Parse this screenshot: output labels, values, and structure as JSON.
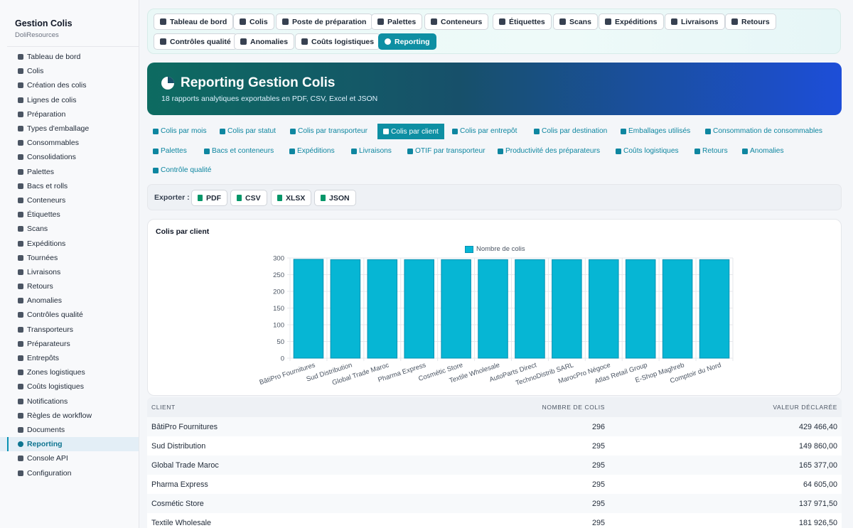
{
  "brand": {
    "title": "Gestion Colis",
    "subtitle": "DoliResources"
  },
  "sidebar": {
    "items": [
      {
        "label": "Tableau de bord",
        "icon": "dashboard-icon"
      },
      {
        "label": "Colis",
        "icon": "box-icon"
      },
      {
        "label": "Création des colis",
        "icon": "plus-square-icon"
      },
      {
        "label": "Lignes de colis",
        "icon": "list-icon"
      },
      {
        "label": "Préparation",
        "icon": "dolly-icon"
      },
      {
        "label": "Types d'emballage",
        "icon": "boxes-icon"
      },
      {
        "label": "Consommables",
        "icon": "tape-icon"
      },
      {
        "label": "Consolidations",
        "icon": "object-group-icon"
      },
      {
        "label": "Palettes",
        "icon": "pallet-icon"
      },
      {
        "label": "Bacs et rolls",
        "icon": "cubes-icon"
      },
      {
        "label": "Conteneurs",
        "icon": "container-icon"
      },
      {
        "label": "Étiquettes",
        "icon": "tags-icon"
      },
      {
        "label": "Scans",
        "icon": "barcode-icon"
      },
      {
        "label": "Expéditions",
        "icon": "truck-icon"
      },
      {
        "label": "Tournées",
        "icon": "route-icon"
      },
      {
        "label": "Livraisons",
        "icon": "truck-loading-icon"
      },
      {
        "label": "Retours",
        "icon": "undo-icon"
      },
      {
        "label": "Anomalies",
        "icon": "warning-icon"
      },
      {
        "label": "Contrôles qualité",
        "icon": "clipboard-check-icon"
      },
      {
        "label": "Transporteurs",
        "icon": "shipping-truck-icon"
      },
      {
        "label": "Préparateurs",
        "icon": "user-cog-icon"
      },
      {
        "label": "Entrepôts",
        "icon": "warehouse-icon"
      },
      {
        "label": "Zones logistiques",
        "icon": "grid-icon"
      },
      {
        "label": "Coûts logistiques",
        "icon": "coins-icon"
      },
      {
        "label": "Notifications",
        "icon": "bell-icon"
      },
      {
        "label": "Règles de workflow",
        "icon": "cogs-icon"
      },
      {
        "label": "Documents",
        "icon": "paperclip-icon"
      },
      {
        "label": "Reporting",
        "icon": "chart-pie-icon",
        "active": true
      },
      {
        "label": "Console API",
        "icon": "plug-icon"
      },
      {
        "label": "Configuration",
        "icon": "gear-icon"
      }
    ]
  },
  "tabs": [
    {
      "label": "Tableau de bord",
      "icon": "dashboard-icon"
    },
    {
      "label": "Colis",
      "icon": "box-icon"
    },
    {
      "label": "Poste de préparation",
      "icon": "dolly-icon"
    },
    {
      "label": "Palettes",
      "icon": "pallet-icon"
    },
    {
      "label": "Conteneurs",
      "icon": "container-icon"
    },
    {
      "label": "Étiquettes",
      "icon": "tags-icon"
    },
    {
      "label": "Scans",
      "icon": "barcode-icon"
    },
    {
      "label": "Expéditions",
      "icon": "truck-icon"
    },
    {
      "label": "Livraisons",
      "icon": "truck-loading-icon"
    },
    {
      "label": "Retours",
      "icon": "undo-icon"
    },
    {
      "label": "Contrôles qualité",
      "icon": "clipboard-check-icon"
    },
    {
      "label": "Anomalies",
      "icon": "warning-icon"
    },
    {
      "label": "Coûts logistiques",
      "icon": "coins-icon"
    },
    {
      "label": "Reporting",
      "icon": "chart-pie-icon",
      "active": true
    }
  ],
  "hero": {
    "title": "Reporting Gestion Colis",
    "subtitle": "18 rapports analytiques exportables en PDF, CSV, Excel et JSON"
  },
  "reports": [
    {
      "label": "Colis par mois",
      "icon": "calendar-icon"
    },
    {
      "label": "Colis par statut",
      "icon": "list-icon"
    },
    {
      "label": "Colis par transporteur",
      "icon": "truck-icon"
    },
    {
      "label": "Colis par client",
      "icon": "building-icon",
      "active": true
    },
    {
      "label": "Colis par entrepôt",
      "icon": "warehouse-icon"
    },
    {
      "label": "Colis par destination",
      "icon": "map-marker-icon"
    },
    {
      "label": "Emballages utilisés",
      "icon": "boxes-icon"
    },
    {
      "label": "Consommation de consommables",
      "icon": "tape-icon"
    },
    {
      "label": "Palettes",
      "icon": "pallet-icon"
    },
    {
      "label": "Bacs et conteneurs",
      "icon": "cubes-icon"
    },
    {
      "label": "Expéditions",
      "icon": "truck-icon"
    },
    {
      "label": "Livraisons",
      "icon": "truck-loading-icon"
    },
    {
      "label": "OTIF par transporteur",
      "icon": "bullseye-icon"
    },
    {
      "label": "Productivité des préparateurs",
      "icon": "tachometer-icon"
    },
    {
      "label": "Coûts logistiques",
      "icon": "coins-icon"
    },
    {
      "label": "Retours",
      "icon": "undo-icon"
    },
    {
      "label": "Anomalies",
      "icon": "warning-icon"
    },
    {
      "label": "Contrôle qualité",
      "icon": "clipboard-check-icon"
    }
  ],
  "export": {
    "label": "Exporter :",
    "buttons": [
      {
        "label": "PDF",
        "icon": "file-pdf-icon"
      },
      {
        "label": "CSV",
        "icon": "file-csv-icon"
      },
      {
        "label": "XLSX",
        "icon": "file-excel-icon"
      },
      {
        "label": "JSON",
        "icon": "file-code-icon"
      }
    ]
  },
  "chart_card": {
    "title": "Colis par client"
  },
  "chart_data": {
    "type": "bar",
    "title": "",
    "categories": [
      "BâtiPro Fournitures",
      "Sud Distribution",
      "Global Trade Maroc",
      "Pharma Express",
      "Cosmétic Store",
      "Textile Wholesale",
      "AutoParts Direct",
      "TechnoDistrib SARL",
      "MarocPro Négoce",
      "Atlas Retail Group",
      "E-Shop Maghreb",
      "Comptoir du Nord"
    ],
    "series": [
      {
        "name": "Nombre de colis",
        "values": [
          296,
          295,
          295,
          295,
          295,
          295,
          295,
          295,
          295,
          295,
          295,
          295
        ]
      }
    ],
    "ylim": [
      0,
      300
    ],
    "yticks": [
      0,
      50,
      100,
      150,
      200,
      250,
      300
    ],
    "legend": "top",
    "grid": true,
    "colors": {
      "bar": "#06b6d4",
      "bar_border": "#0891b2"
    }
  },
  "table": {
    "headers": [
      "CLIENT",
      "NOMBRE DE COLIS",
      "VALEUR DÉCLARÉE"
    ],
    "rows": [
      [
        "BâtiPro Fournitures",
        "296",
        "429 466,40"
      ],
      [
        "Sud Distribution",
        "295",
        "149 860,00"
      ],
      [
        "Global Trade Maroc",
        "295",
        "165 377,00"
      ],
      [
        "Pharma Express",
        "295",
        "64 605,00"
      ],
      [
        "Cosmétic Store",
        "295",
        "137 971,50"
      ],
      [
        "Textile Wholesale",
        "295",
        "181 926,50"
      ]
    ]
  }
}
